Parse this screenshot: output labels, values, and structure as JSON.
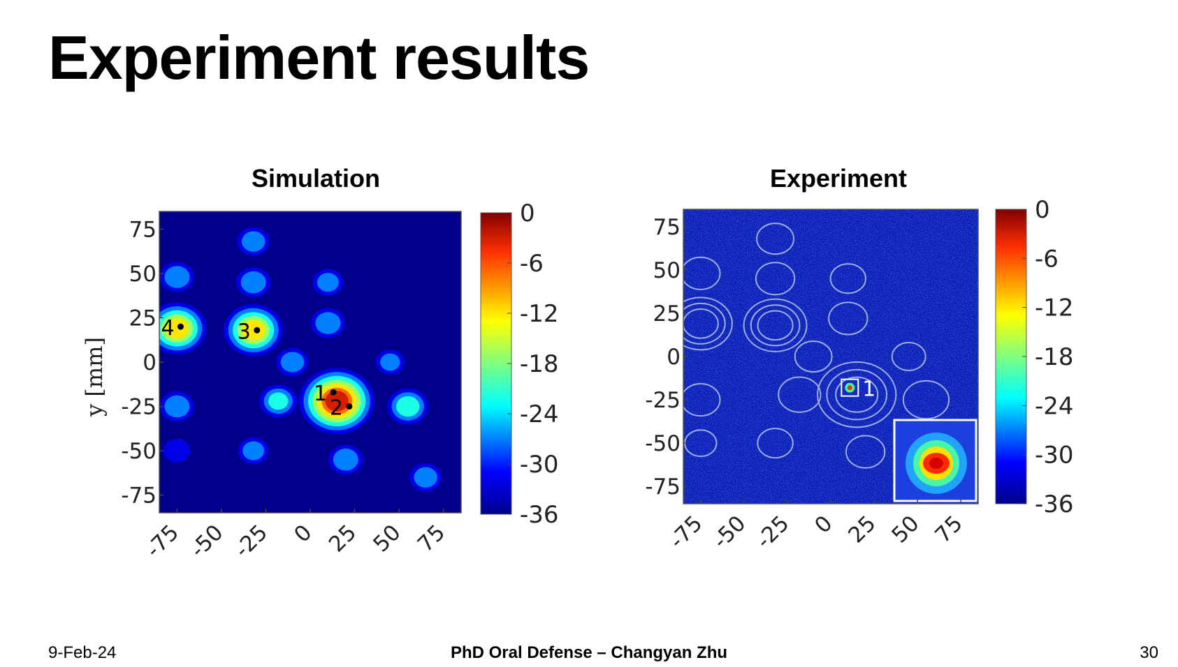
{
  "slide": {
    "title": "Experiment results",
    "footer_date": "9-Feb-24",
    "footer_center": "PhD Oral Defense – Changyan Zhu",
    "page_number": "30"
  },
  "colors": {
    "background": "#00008b",
    "title": "#000000"
  },
  "chart_data": [
    {
      "type": "heatmap",
      "title": "Simulation",
      "ylabel": "y [mm]",
      "xlabel": "",
      "xlim": [
        -85,
        85
      ],
      "ylim": [
        -85,
        85
      ],
      "xticks": [
        "-75",
        "-50",
        "-25",
        "0",
        "25",
        "50",
        "75"
      ],
      "yticks": [
        "75",
        "50",
        "25",
        "0",
        "-25",
        "-50",
        "-75"
      ],
      "colorbar": {
        "range": [
          -36,
          0
        ],
        "ticks": [
          "0",
          "-6",
          "-12",
          "-18",
          "-24",
          "-30",
          "-36"
        ]
      },
      "sources": [
        {
          "label": "1",
          "x": 13,
          "y": -17
        },
        {
          "label": "2",
          "x": 22,
          "y": -25
        },
        {
          "label": "3",
          "x": -30,
          "y": 18
        },
        {
          "label": "4",
          "x": -73,
          "y": 20
        }
      ],
      "peaks": [
        {
          "x": 15,
          "y": -22,
          "value": -1
        },
        {
          "x": -32,
          "y": 18,
          "value": -10
        },
        {
          "x": -75,
          "y": 19,
          "value": -10
        },
        {
          "x": 55,
          "y": -25,
          "value": -20
        },
        {
          "x": -18,
          "y": -22,
          "value": -22
        },
        {
          "x": 10,
          "y": 22,
          "value": -24
        },
        {
          "x": -32,
          "y": 45,
          "value": -24
        },
        {
          "x": -32,
          "y": 68,
          "value": -25
        },
        {
          "x": -75,
          "y": 48,
          "value": -24
        },
        {
          "x": -75,
          "y": -25,
          "value": -24
        },
        {
          "x": 20,
          "y": -55,
          "value": -24
        },
        {
          "x": 10,
          "y": 45,
          "value": -26
        },
        {
          "x": -10,
          "y": 0,
          "value": -25
        },
        {
          "x": 65,
          "y": -65,
          "value": -25
        },
        {
          "x": -75,
          "y": -50,
          "value": -28
        },
        {
          "x": -32,
          "y": -50,
          "value": -26
        },
        {
          "x": 45,
          "y": 0,
          "value": -27
        }
      ]
    },
    {
      "type": "heatmap",
      "title": "Experiment",
      "xlim": [
        -85,
        85
      ],
      "ylim": [
        -85,
        85
      ],
      "xticks": [
        "-75",
        "-50",
        "-25",
        "0",
        "25",
        "50",
        "75"
      ],
      "yticks": [
        "75",
        "50",
        "25",
        "0",
        "-25",
        "-50",
        "-75"
      ],
      "colorbar": {
        "range": [
          -36,
          0
        ],
        "ticks": [
          "0",
          "-6",
          "-12",
          "-18",
          "-24",
          "-30",
          "-36"
        ]
      },
      "sources": [
        {
          "label": "1",
          "x": 11,
          "y": -18
        }
      ],
      "background_level": -33,
      "inset": {
        "description_level": -2
      }
    }
  ]
}
